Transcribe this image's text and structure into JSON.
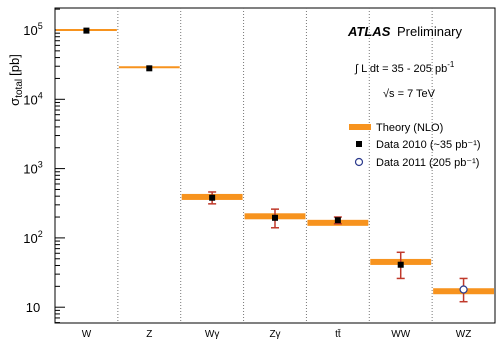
{
  "chart_data": {
    "type": "scatter",
    "title": "",
    "ylabel_main": "σ",
    "ylabel_sub": "total",
    "ylabel_unit": "[pb]",
    "xlabel": "",
    "y_scale": "log",
    "ylim": [
      5,
      200000
    ],
    "y_ticks": [
      {
        "value": 10,
        "label": "10"
      },
      {
        "value": 100,
        "label": "10",
        "exp": "2"
      },
      {
        "value": 1000,
        "label": "10",
        "exp": "3"
      },
      {
        "value": 10000,
        "label": "10",
        "exp": "4"
      },
      {
        "value": 100000,
        "label": "10",
        "exp": "5"
      }
    ],
    "categories": [
      "W",
      "Z",
      "Wγ",
      "Zγ",
      "tt̄",
      "WW",
      "WZ"
    ],
    "series": [
      {
        "name": "Theory (NLO)",
        "values": [
          100000,
          29000,
          390,
          205,
          165,
          45,
          17
        ]
      },
      {
        "name": "Data 2010  (~35 pb⁻¹)",
        "values": [
          98000,
          28000,
          380,
          195,
          180,
          41,
          null
        ],
        "err_low": [
          null,
          null,
          310,
          140,
          160,
          26,
          null
        ],
        "err_high": [
          null,
          null,
          460,
          260,
          200,
          62,
          null
        ]
      },
      {
        "name": "Data 2011  (205 pb⁻¹)",
        "values": [
          null,
          null,
          null,
          null,
          null,
          null,
          18
        ],
        "err_low": [
          null,
          null,
          null,
          null,
          null,
          null,
          12
        ],
        "err_high": [
          null,
          null,
          null,
          null,
          null,
          null,
          26
        ]
      }
    ],
    "legend_placement": "right",
    "grid": "vertical dotted separators",
    "annotations": {
      "atlas": "ATLAS",
      "preliminary": "Preliminary",
      "lumi": "∫ L dt = 35 - 205 pb",
      "lumi_exp": "-1",
      "energy": "√s = 7 TeV"
    },
    "colors": {
      "theory": "#f7931e",
      "error": "#c0392b",
      "data2011": "#2b3a8c",
      "data2010": "#000000"
    }
  }
}
